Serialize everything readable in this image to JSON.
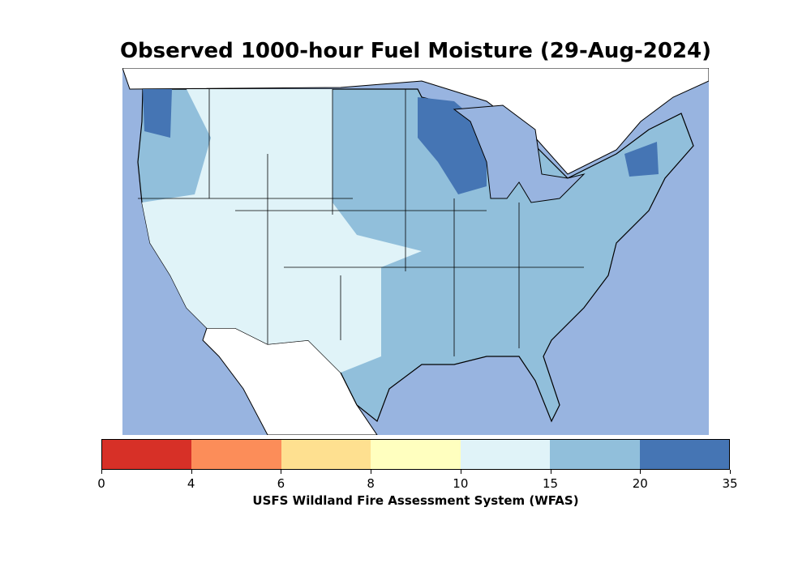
{
  "title": "Observed 1000-hour Fuel Moisture (29-Aug-2024)",
  "colorbar": {
    "label": "USFS Wildland Fire Assessment System (WFAS)",
    "ticks": [
      "0",
      "4",
      "6",
      "8",
      "10",
      "15",
      "20",
      "35"
    ],
    "colors": [
      "#d73027",
      "#fc8d59",
      "#fee090",
      "#ffffbf",
      "#e0f3f8",
      "#91bfdb",
      "#4575b4"
    ]
  },
  "map_colors": {
    "water": "#98b4e0",
    "foreign_land": "#ffffff"
  }
}
